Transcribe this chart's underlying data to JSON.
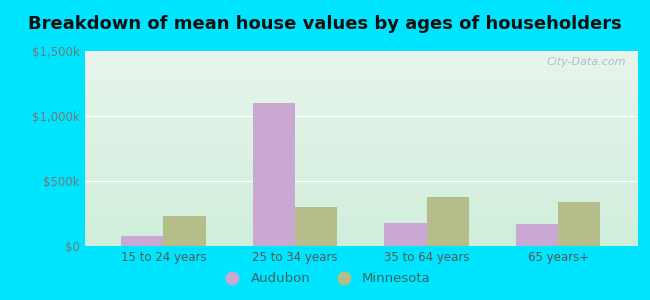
{
  "title": "Breakdown of mean house values by ages of householders",
  "categories": [
    "15 to 24 years",
    "25 to 34 years",
    "35 to 64 years",
    "65 years+"
  ],
  "audubon_values": [
    75000,
    1100000,
    175000,
    170000
  ],
  "minnesota_values": [
    230000,
    300000,
    380000,
    340000
  ],
  "audubon_color": "#c9a8d4",
  "minnesota_color": "#b5be8a",
  "ylim": [
    0,
    1500000
  ],
  "yticks": [
    0,
    500000,
    1000000,
    1500000
  ],
  "ytick_labels": [
    "$0",
    "$500k",
    "$1,000k",
    "$1,500k"
  ],
  "legend_audubon": "Audubon",
  "legend_minnesota": "Minnesota",
  "background_outer": "#00e5ff",
  "bg_top_color": "#e8f5ec",
  "bg_bottom_color": "#d0eedc",
  "title_fontsize": 13,
  "bar_width": 0.32,
  "tick_label_color": "#777777",
  "xlabel_color": "#555555",
  "watermark": "City-Data.com"
}
